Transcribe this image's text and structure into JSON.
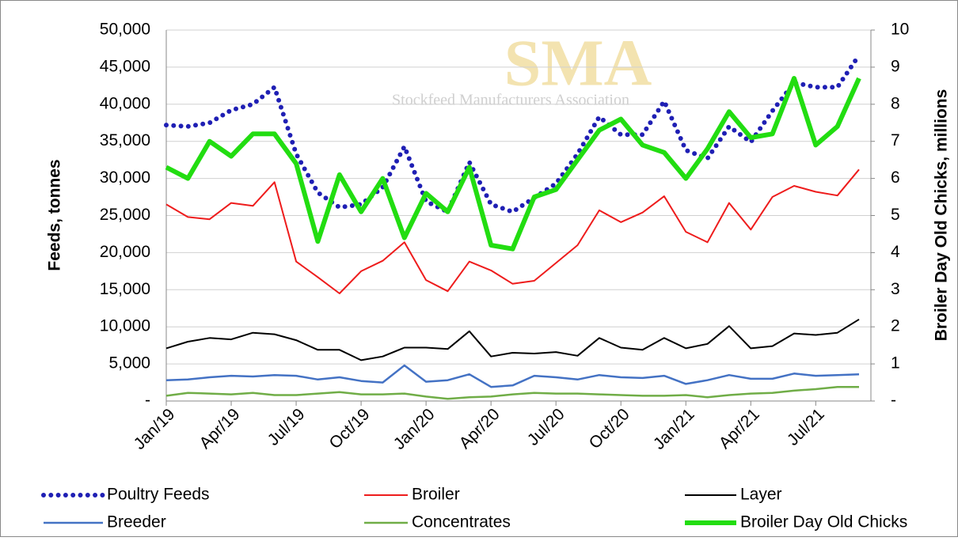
{
  "chart_data": {
    "type": "line",
    "watermark": {
      "title": "SMA",
      "subtitle": "Stockfeed Manufacturers Association"
    },
    "y_label": "Feeds, tonnes",
    "y2_label": "Broiler Day Old Chicks, millions",
    "categories": [
      "Jan/19",
      null,
      null,
      "Apr/19",
      null,
      null,
      "Jul/19",
      null,
      null,
      "Oct/19",
      null,
      null,
      "Jan/20",
      null,
      null,
      "Apr/20",
      null,
      null,
      "Jul/20",
      null,
      null,
      "Oct/20",
      null,
      null,
      "Jan/21",
      null,
      null,
      "Apr/21",
      null,
      null,
      "Jul/21",
      null,
      null
    ],
    "ylim": [
      0,
      50000
    ],
    "yticks": [
      {
        "value": 0,
        "label": "-"
      },
      {
        "value": 5000,
        "label": "5,000"
      },
      {
        "value": 10000,
        "label": "10,000"
      },
      {
        "value": 15000,
        "label": "15,000"
      },
      {
        "value": 20000,
        "label": "20,000"
      },
      {
        "value": 25000,
        "label": "25,000"
      },
      {
        "value": 30000,
        "label": "30,000"
      },
      {
        "value": 35000,
        "label": "35,000"
      },
      {
        "value": 40000,
        "label": "40,000"
      },
      {
        "value": 45000,
        "label": "45,000"
      },
      {
        "value": 50000,
        "label": "50,000"
      }
    ],
    "y2lim": [
      0,
      10
    ],
    "y2ticks": [
      {
        "value": 0,
        "label": "-"
      },
      1,
      2,
      3,
      4,
      5,
      6,
      7,
      8,
      9,
      10
    ],
    "grid": true,
    "series": [
      {
        "name": "Poultry Feeds",
        "color": "#1f1fb4",
        "line_style": "dotted",
        "line_width": 6,
        "values": [
          37200,
          37000,
          37500,
          39200,
          40000,
          42300,
          33300,
          28100,
          26100,
          26500,
          28800,
          34300,
          26900,
          25500,
          32200,
          26500,
          25500,
          27400,
          29300,
          33300,
          38300,
          35900,
          35900,
          40400,
          33800,
          32700,
          37000,
          34900,
          39100,
          42900,
          42300,
          42300,
          46600
        ]
      },
      {
        "name": "Broiler",
        "color": "#ee1c1c",
        "line_style": "solid",
        "line_width": 2,
        "values": [
          26500,
          24800,
          24500,
          26700,
          26300,
          29500,
          18800,
          16700,
          14500,
          17500,
          18900,
          21400,
          16300,
          14800,
          18800,
          17600,
          15800,
          16200,
          18600,
          21000,
          25700,
          24100,
          25400,
          27600,
          22800,
          21400,
          26700,
          23100,
          27500,
          29000,
          28200,
          27700,
          31200
        ]
      },
      {
        "name": "Layer",
        "color": "#000000",
        "line_style": "solid",
        "line_width": 2,
        "values": [
          7100,
          8000,
          8500,
          8300,
          9200,
          9000,
          8200,
          6900,
          6900,
          5500,
          6000,
          7200,
          7200,
          7000,
          9400,
          6000,
          6500,
          6400,
          6600,
          6100,
          8500,
          7200,
          6900,
          8500,
          7100,
          7700,
          10100,
          7100,
          7400,
          9100,
          8900,
          9200,
          11000
        ]
      },
      {
        "name": "Breeder",
        "color": "#4472c4",
        "line_style": "solid",
        "line_width": 2.5,
        "values": [
          2800,
          2900,
          3200,
          3400,
          3300,
          3500,
          3400,
          2900,
          3200,
          2700,
          2500,
          4800,
          2600,
          2800,
          3600,
          1900,
          2100,
          3400,
          3200,
          2900,
          3500,
          3200,
          3100,
          3400,
          2300,
          2800,
          3500,
          3000,
          3000,
          3700,
          3400,
          3500,
          3600
        ]
      },
      {
        "name": "Concentrates",
        "color": "#70ad47",
        "line_style": "solid",
        "line_width": 2.5,
        "values": [
          700,
          1100,
          1000,
          900,
          1100,
          800,
          800,
          1000,
          1200,
          900,
          900,
          1000,
          600,
          300,
          500,
          600,
          900,
          1100,
          1000,
          1000,
          900,
          800,
          700,
          700,
          800,
          500,
          800,
          1000,
          1100,
          1400,
          1600,
          1900,
          1900
        ]
      },
      {
        "name": "Broiler Day Old Chicks",
        "color": "#22dd11",
        "line_style": "solid",
        "line_width": 6,
        "axis": "y2",
        "values": [
          6.3,
          6.0,
          7.0,
          6.6,
          7.2,
          7.2,
          6.4,
          4.3,
          6.1,
          5.1,
          6.0,
          4.4,
          5.6,
          5.1,
          6.3,
          4.2,
          4.1,
          5.5,
          5.7,
          6.5,
          7.3,
          7.6,
          6.9,
          6.7,
          6.0,
          6.8,
          7.8,
          7.1,
          7.2,
          8.7,
          6.9,
          7.4,
          8.7
        ]
      }
    ]
  }
}
